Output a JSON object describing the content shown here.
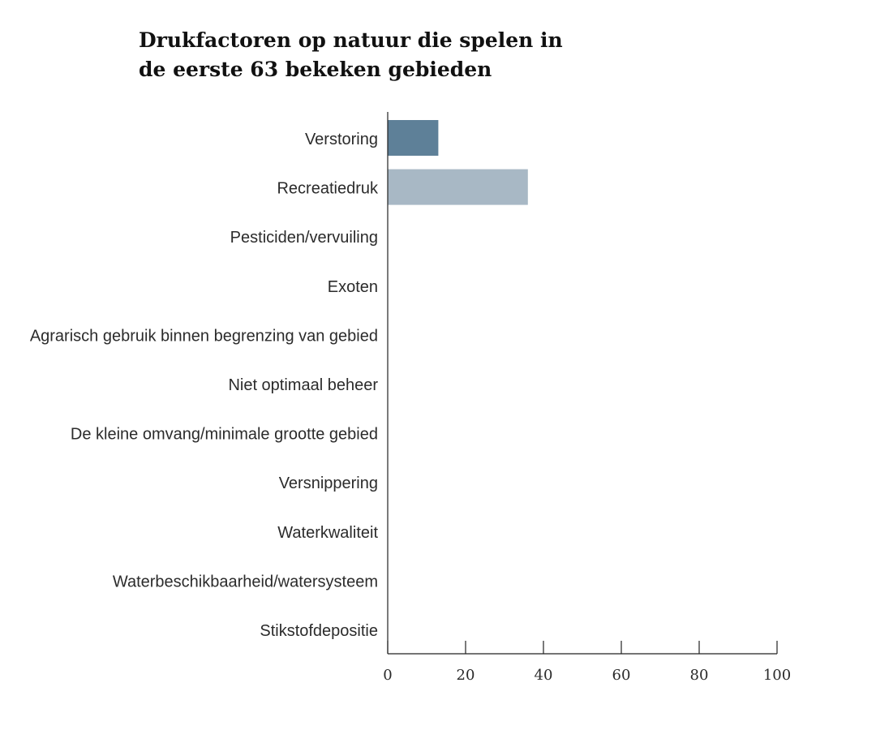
{
  "chart_data": {
    "type": "bar",
    "orientation": "horizontal",
    "title": "Drukfactoren op natuur die spelen in\nde eerste 63 bekeken gebieden",
    "categories": [
      "Verstoring",
      "Recreatiedruk",
      "Pesticiden/vervuiling",
      "Exoten",
      "Agrarisch gebruik binnen begrenzing van gebied",
      "Niet optimaal beheer",
      "De kleine omvang/minimale grootte gebied",
      "Versnippering",
      "Waterkwaliteit",
      "Waterbeschikbaarheid/watersysteem",
      "Stikstofdepositie"
    ],
    "values": [
      13,
      36,
      null,
      null,
      null,
      null,
      null,
      null,
      null,
      null,
      null
    ],
    "bar_colors": [
      "#5e8098",
      "#a8b8c5"
    ],
    "xlim": [
      0,
      100
    ],
    "xticks": [
      0,
      20,
      40,
      60,
      80,
      100
    ],
    "xlabel": "",
    "ylabel": "",
    "grid": false
  }
}
